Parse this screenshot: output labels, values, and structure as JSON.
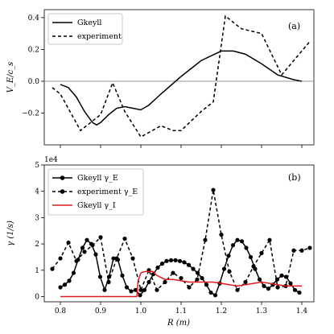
{
  "chart_data": [
    {
      "panel": "(a)",
      "type": "line",
      "ylabel": "V_E/c_s",
      "xlabel": "",
      "xlim": [
        0.76,
        1.43
      ],
      "ylim": [
        -0.4,
        0.45
      ],
      "yticks": [
        -0.2,
        0.0,
        0.2,
        0.4
      ],
      "ytick_labels": [
        "−0.2",
        "0.0",
        "0.2",
        "0.4"
      ],
      "hline": 0.0,
      "legend": "top-left",
      "series": [
        {
          "name": "Gkeyll",
          "color": "#000000",
          "dash": "solid",
          "x": [
            0.8,
            0.82,
            0.84,
            0.86,
            0.88,
            0.89,
            0.9,
            0.92,
            0.94,
            0.96,
            0.98,
            1.0,
            1.02,
            1.05,
            1.1,
            1.15,
            1.2,
            1.23,
            1.26,
            1.3,
            1.34,
            1.38,
            1.4
          ],
          "y": [
            -0.02,
            -0.04,
            -0.1,
            -0.19,
            -0.26,
            -0.275,
            -0.26,
            -0.21,
            -0.17,
            -0.16,
            -0.17,
            -0.18,
            -0.15,
            -0.08,
            0.03,
            0.13,
            0.19,
            0.19,
            0.17,
            0.11,
            0.04,
            0.01,
            0.0
          ]
        },
        {
          "name": "experiment",
          "color": "#000000",
          "dash": "dashed",
          "x": [
            0.78,
            0.8,
            0.85,
            0.9,
            0.93,
            0.96,
            1.0,
            1.05,
            1.08,
            1.1,
            1.15,
            1.18,
            1.21,
            1.25,
            1.3,
            1.35,
            1.42
          ],
          "y": [
            -0.04,
            -0.08,
            -0.31,
            -0.21,
            -0.01,
            -0.19,
            -0.35,
            -0.28,
            -0.31,
            -0.31,
            -0.19,
            -0.13,
            0.41,
            0.33,
            0.3,
            0.04,
            0.25
          ]
        }
      ]
    },
    {
      "panel": "(b)",
      "type": "line",
      "ylabel": "γ (1/s)",
      "xlabel": "R (m)",
      "multiplier": "1e4",
      "xlim": [
        0.76,
        1.43
      ],
      "ylim": [
        -0.2,
        5.0
      ],
      "xticks": [
        0.8,
        0.9,
        1.0,
        1.1,
        1.2,
        1.3,
        1.4
      ],
      "xtick_labels": [
        "0.8",
        "0.9",
        "1.0",
        "1.1",
        "1.2",
        "1.3",
        "1.4"
      ],
      "yticks": [
        0,
        1,
        2,
        3,
        4,
        5
      ],
      "ytick_labels": [
        "0",
        "1",
        "2",
        "3",
        "4",
        "5"
      ],
      "legend": "top-left",
      "series": [
        {
          "name": "Gkeyll γ_E",
          "color": "#000000",
          "dash": "solid",
          "marker": "circle",
          "x": [
            0.8,
            0.811,
            0.822,
            0.833,
            0.844,
            0.855,
            0.866,
            0.877,
            0.888,
            0.899,
            0.91,
            0.921,
            0.932,
            0.943,
            0.954,
            0.965,
            0.976,
            0.987,
            0.998,
            1.009,
            1.02,
            1.031,
            1.042,
            1.053,
            1.064,
            1.075,
            1.086,
            1.097,
            1.108,
            1.119,
            1.13,
            1.141,
            1.152,
            1.163,
            1.174,
            1.185,
            1.196,
            1.207,
            1.218,
            1.229,
            1.24,
            1.251,
            1.262,
            1.273,
            1.284,
            1.295,
            1.306,
            1.317,
            1.328,
            1.339,
            1.35,
            1.361,
            1.372,
            1.383,
            1.394
          ],
          "y": [
            0.35,
            0.45,
            0.6,
            0.9,
            1.4,
            1.85,
            2.15,
            2.0,
            1.6,
            0.75,
            0.25,
            0.75,
            1.45,
            1.4,
            0.8,
            0.35,
            0.2,
            0.25,
            0.05,
            0.25,
            0.55,
            0.85,
            1.1,
            1.25,
            1.35,
            1.38,
            1.38,
            1.35,
            1.3,
            1.2,
            1.05,
            0.9,
            0.7,
            0.45,
            0.15,
            0.05,
            0.5,
            1.05,
            1.55,
            1.95,
            2.15,
            2.1,
            1.85,
            1.5,
            1.05,
            0.65,
            0.4,
            0.3,
            0.45,
            0.65,
            0.8,
            0.75,
            0.5,
            0.25,
            0.15
          ]
        },
        {
          "name": "experiment γ_E",
          "color": "#000000",
          "dash": "dashed",
          "marker": "circle",
          "x": [
            0.78,
            0.8,
            0.82,
            0.84,
            0.86,
            0.88,
            0.9,
            0.92,
            0.94,
            0.96,
            0.98,
            1.0,
            1.02,
            1.04,
            1.06,
            1.08,
            1.1,
            1.12,
            1.14,
            1.16,
            1.18,
            1.2,
            1.22,
            1.24,
            1.26,
            1.28,
            1.3,
            1.32,
            1.34,
            1.36,
            1.38,
            1.4,
            1.42
          ],
          "y": [
            1.05,
            1.45,
            2.05,
            1.35,
            1.7,
            1.95,
            2.25,
            0.55,
            1.45,
            2.2,
            1.45,
            0.25,
            1.0,
            0.25,
            0.55,
            0.9,
            0.7,
            0.35,
            0.65,
            2.15,
            4.05,
            2.35,
            0.95,
            0.25,
            0.55,
            1.15,
            1.65,
            2.15,
            0.35,
            0.4,
            1.75,
            1.75,
            1.85
          ]
        },
        {
          "name": "Gkeyll γ_I",
          "color": "#e31a1c",
          "dash": "solid",
          "marker": "none",
          "x": [
            0.8,
            0.85,
            0.9,
            0.95,
            0.99,
            0.993,
            1.0,
            1.01,
            1.03,
            1.04,
            1.06,
            1.08,
            1.1,
            1.12,
            1.14,
            1.16,
            1.18,
            1.2,
            1.22,
            1.24,
            1.26,
            1.28,
            1.3,
            1.32,
            1.34,
            1.36,
            1.38,
            1.4
          ],
          "y": [
            0.0,
            0.0,
            0.0,
            0.0,
            0.0,
            0.6,
            0.9,
            0.95,
            0.95,
            0.8,
            0.65,
            0.65,
            0.6,
            0.55,
            0.55,
            0.55,
            0.55,
            0.5,
            0.45,
            0.4,
            0.45,
            0.5,
            0.55,
            0.5,
            0.45,
            0.4,
            0.4,
            0.4
          ]
        }
      ]
    }
  ]
}
